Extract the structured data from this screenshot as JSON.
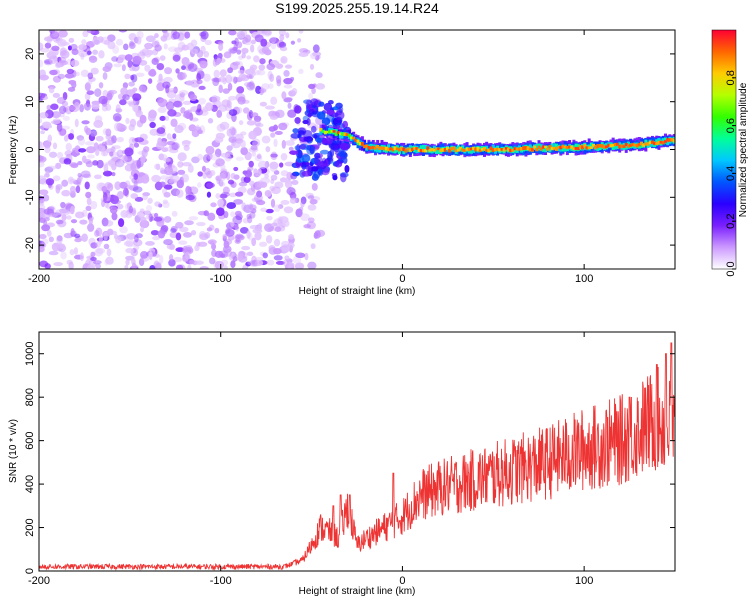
{
  "title": "S199.2025.255.19.14.R24",
  "chart_data": [
    {
      "type": "heatmap",
      "xlabel": "Height of straight line (km)",
      "ylabel": "Frequency (Hz)",
      "xlim": [
        -200,
        150
      ],
      "ylim": [
        -25,
        25
      ],
      "xticks": [
        -200,
        -100,
        0,
        100
      ],
      "yticks": [
        -20,
        -10,
        0,
        10,
        20
      ],
      "colorbar": {
        "label": "Normalized spectral amplitude",
        "range": [
          0,
          1
        ],
        "ticks": [
          0.0,
          0.2,
          0.4,
          0.6,
          0.8
        ],
        "colormap": [
          "#ffffff",
          "#cc99ff",
          "#7a1fff",
          "#2b00ff",
          "#0055ff",
          "#00c8ff",
          "#00ff99",
          "#33ff00",
          "#b4ff00",
          "#ffcc00",
          "#ff6600",
          "#ff0033"
        ]
      },
      "ridge": {
        "description": "high-amplitude ridge",
        "points": [
          [
            -45,
            4
          ],
          [
            -30,
            3
          ],
          [
            -20,
            0.5
          ],
          [
            0,
            0
          ],
          [
            50,
            0
          ],
          [
            100,
            0.5
          ],
          [
            130,
            1
          ],
          [
            150,
            2
          ]
        ]
      },
      "noise_region_x": [
        -200,
        -60
      ]
    },
    {
      "type": "line",
      "xlabel": "Height of straight line (km)",
      "ylabel": "SNR (10 * v/v)",
      "xlim": [
        -200,
        150
      ],
      "ylim": [
        0,
        1100
      ],
      "xticks": [
        -200,
        -100,
        0,
        100
      ],
      "yticks": [
        0,
        200,
        400,
        600,
        800,
        1000
      ],
      "series": [
        {
          "color": "#ee3333",
          "x": [
            -200,
            -150,
            -100,
            -65,
            -55,
            -50,
            -45,
            -40,
            -35,
            -30,
            -25,
            -20,
            -10,
            0,
            10,
            20,
            40,
            60,
            80,
            100,
            120,
            130,
            140,
            150
          ],
          "y": [
            20,
            20,
            20,
            20,
            50,
            120,
            200,
            180,
            150,
            300,
            120,
            150,
            200,
            250,
            350,
            380,
            420,
            460,
            500,
            560,
            600,
            650,
            700,
            650
          ],
          "spikes": [
            [
              -38,
              300
            ],
            [
              -34,
              350
            ],
            [
              -29,
              350
            ],
            [
              -5,
              450
            ],
            [
              125,
              800
            ],
            [
              140,
              950
            ],
            [
              145,
              1000
            ],
            [
              148,
              1050
            ]
          ]
        }
      ]
    }
  ]
}
